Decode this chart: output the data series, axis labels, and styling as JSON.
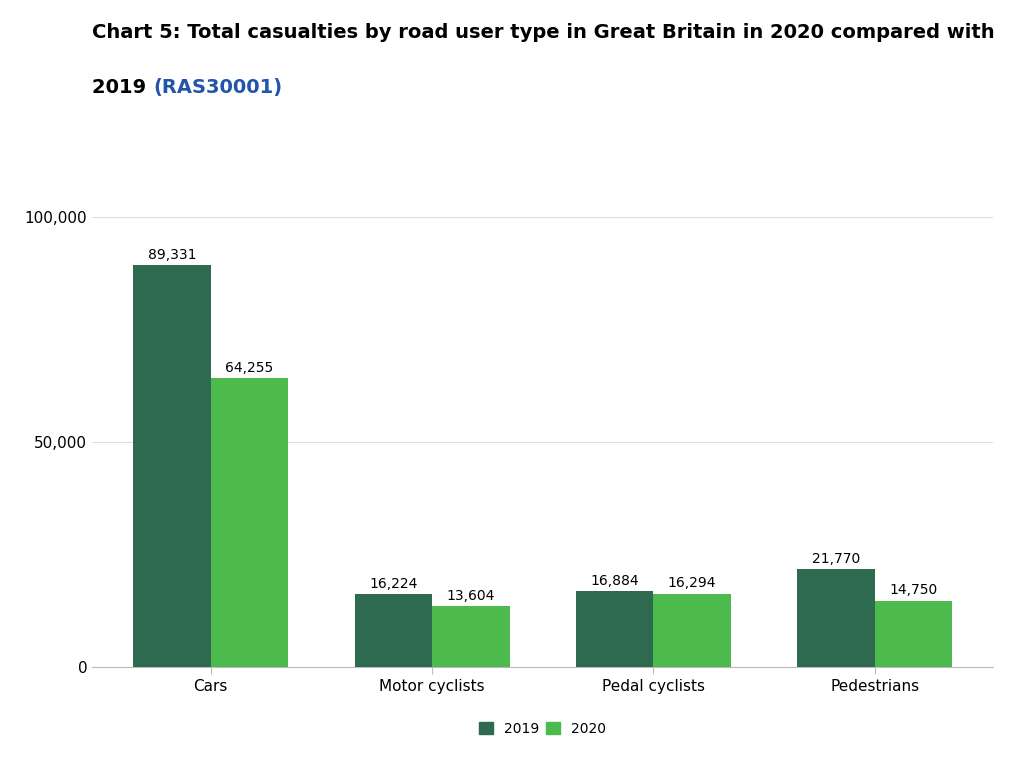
{
  "title_line1": "Chart 5: Total casualties by road user type in Great Britain in 2020 compared with",
  "title_line2": "2019 ",
  "title_link": "(RAS30001)",
  "categories": [
    "Cars",
    "Motor cyclists",
    "Pedal cyclists",
    "Pedestrians"
  ],
  "values_2019": [
    89331,
    16224,
    16884,
    21770
  ],
  "values_2020": [
    64255,
    13604,
    16294,
    14750
  ],
  "labels_2019": [
    "89,331",
    "16,224",
    "16,884",
    "21,770"
  ],
  "labels_2020": [
    "64,255",
    "13,604",
    "16,294",
    "14,750"
  ],
  "color_2019": "#2d6a4f",
  "color_2020": "#4dba4d",
  "ylim": [
    0,
    100000
  ],
  "yticks": [
    0,
    50000,
    100000
  ],
  "ytick_labels": [
    "0",
    "50,000",
    "100,000"
  ],
  "background_color": "#ffffff",
  "bar_width": 0.35,
  "title_fontsize": 14,
  "axis_fontsize": 11,
  "label_fontsize": 10,
  "legend_fontsize": 10
}
